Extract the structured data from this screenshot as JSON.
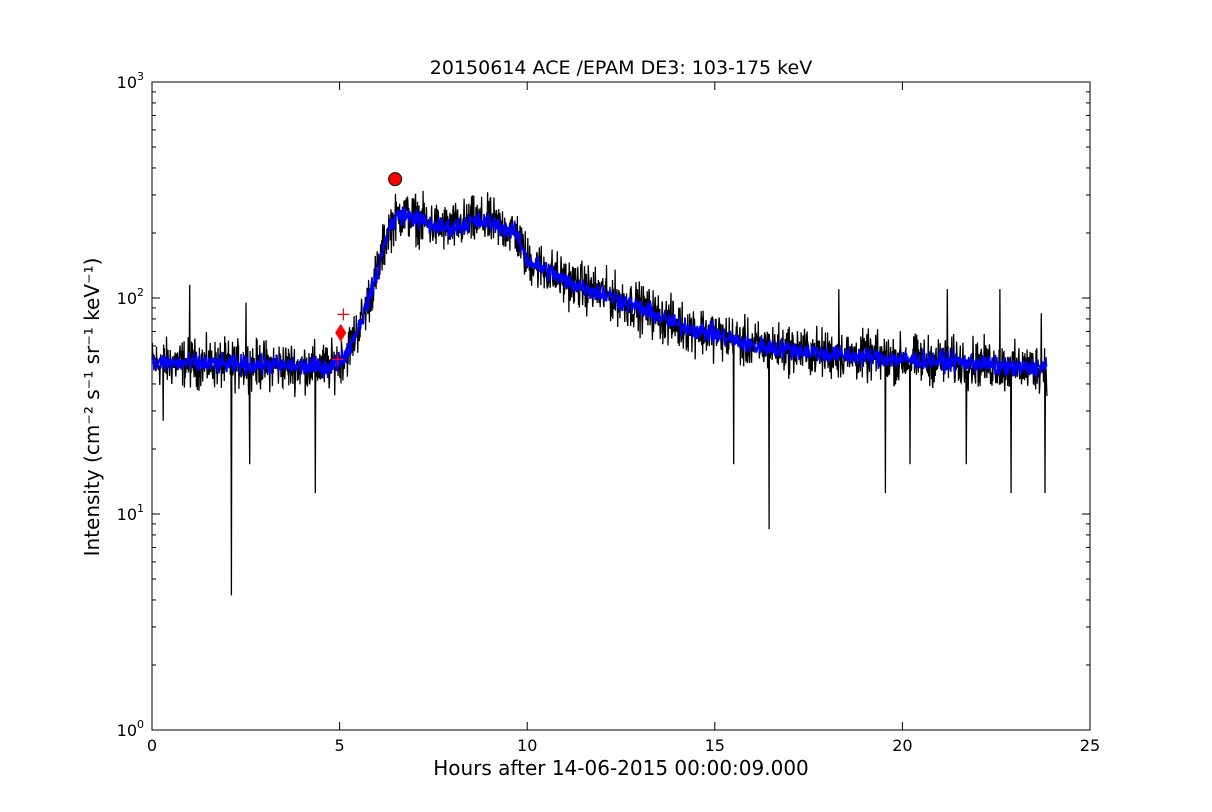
{
  "chart_data": {
    "type": "line",
    "title": "20150614 ACE /EPAM DE3: 103-175 keV",
    "xlabel": "Hours after 14-06-2015 00:00:09.000",
    "ylabel": "Intensity (cm⁻² s⁻¹ sr⁻¹ keV⁻¹)",
    "xlim": [
      0,
      25
    ],
    "ylim": [
      1,
      1000
    ],
    "yscale": "log",
    "grid": false,
    "x_ticks": [
      0,
      5,
      10,
      15,
      20,
      25
    ],
    "x_tick_labels": [
      "0",
      "5",
      "10",
      "15",
      "20",
      "25"
    ],
    "y_ticks": [
      1,
      10,
      100,
      1000
    ],
    "y_tick_labels": [
      "10",
      "10",
      "10",
      "10"
    ],
    "y_tick_exponents": [
      "0",
      "1",
      "2",
      "3"
    ],
    "series": [
      {
        "color": "#000000",
        "description": "raw",
        "profile": {
          "x": [
            0,
            1,
            2,
            3,
            4,
            4.8,
            5.2,
            5.6,
            6.0,
            6.3,
            6.6,
            7.0,
            7.5,
            8.0,
            8.5,
            9.0,
            9.7,
            10.0,
            10.5,
            11.0,
            12.0,
            13.0,
            14.0,
            15.0,
            16.0,
            17.0,
            18.0,
            20.0,
            22.0,
            23.0,
            23.85
          ],
          "y": [
            50,
            50,
            49,
            49,
            48,
            48,
            56,
            80,
            130,
            210,
            245,
            235,
            215,
            210,
            225,
            225,
            200,
            150,
            135,
            120,
            105,
            90,
            75,
            68,
            60,
            58,
            55,
            52,
            50,
            47,
            48
          ]
        },
        "spikes_low": [
          [
            0.3,
            27
          ],
          [
            2.12,
            4.2
          ],
          [
            2.6,
            17
          ],
          [
            4.35,
            12.5
          ],
          [
            15.5,
            17
          ],
          [
            16.45,
            8.5
          ],
          [
            19.55,
            12.5
          ],
          [
            20.2,
            17
          ],
          [
            21.7,
            17
          ],
          [
            22.9,
            12.5
          ],
          [
            23.8,
            12.5
          ]
        ],
        "spikes_high": [
          [
            1.0,
            115
          ],
          [
            2.5,
            95
          ],
          [
            13.3,
            95
          ],
          [
            18.3,
            110
          ],
          [
            21.2,
            110
          ],
          [
            22.6,
            110
          ],
          [
            23.7,
            85
          ]
        ]
      },
      {
        "color": "#0000ff",
        "description": "smoothed",
        "profile": {
          "x": [
            0,
            1,
            2,
            3,
            4,
            4.8,
            5.2,
            5.6,
            6.0,
            6.3,
            6.6,
            7.0,
            7.5,
            8.0,
            8.5,
            9.0,
            9.7,
            10.0,
            10.5,
            11.0,
            12.0,
            13.0,
            14.0,
            15.0,
            16.0,
            17.0,
            18.0,
            20.0,
            22.0,
            23.0,
            23.85
          ],
          "y": [
            50,
            50,
            49,
            49,
            48,
            48,
            56,
            80,
            130,
            210,
            245,
            235,
            215,
            210,
            225,
            225,
            200,
            150,
            135,
            120,
            105,
            90,
            75,
            68,
            60,
            58,
            55,
            52,
            50,
            47,
            48
          ]
        }
      }
    ],
    "markers": [
      {
        "shape": "circle",
        "x": 6.48,
        "y": 355,
        "color": "#ff0000"
      },
      {
        "shape": "diamond",
        "x": 5.03,
        "y": 69,
        "color": "#ff0000"
      },
      {
        "shape": "plus",
        "x": 5.1,
        "y": 84,
        "color": "#ff0000"
      },
      {
        "shape": "plus",
        "x": 4.95,
        "y": 52,
        "color": "#ff0000"
      }
    ]
  }
}
